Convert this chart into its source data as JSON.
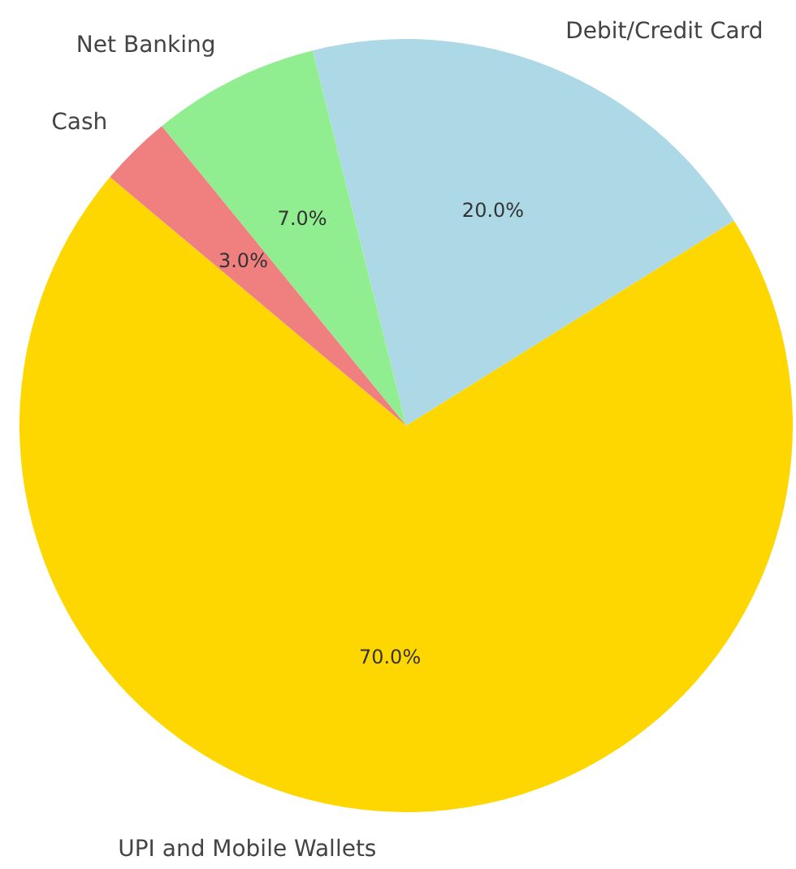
{
  "chart_data": {
    "type": "pie",
    "categories": [
      "UPI and Mobile Wallets",
      "Debit/Credit Card",
      "Net Banking",
      "Cash"
    ],
    "values": [
      70,
      20,
      7,
      3
    ],
    "colors": [
      "#ffd700",
      "#add8e6",
      "#90ee90",
      "#f08080"
    ],
    "value_labels": [
      "70.0%",
      "20.0%",
      "7.0%",
      "3.0%"
    ]
  }
}
